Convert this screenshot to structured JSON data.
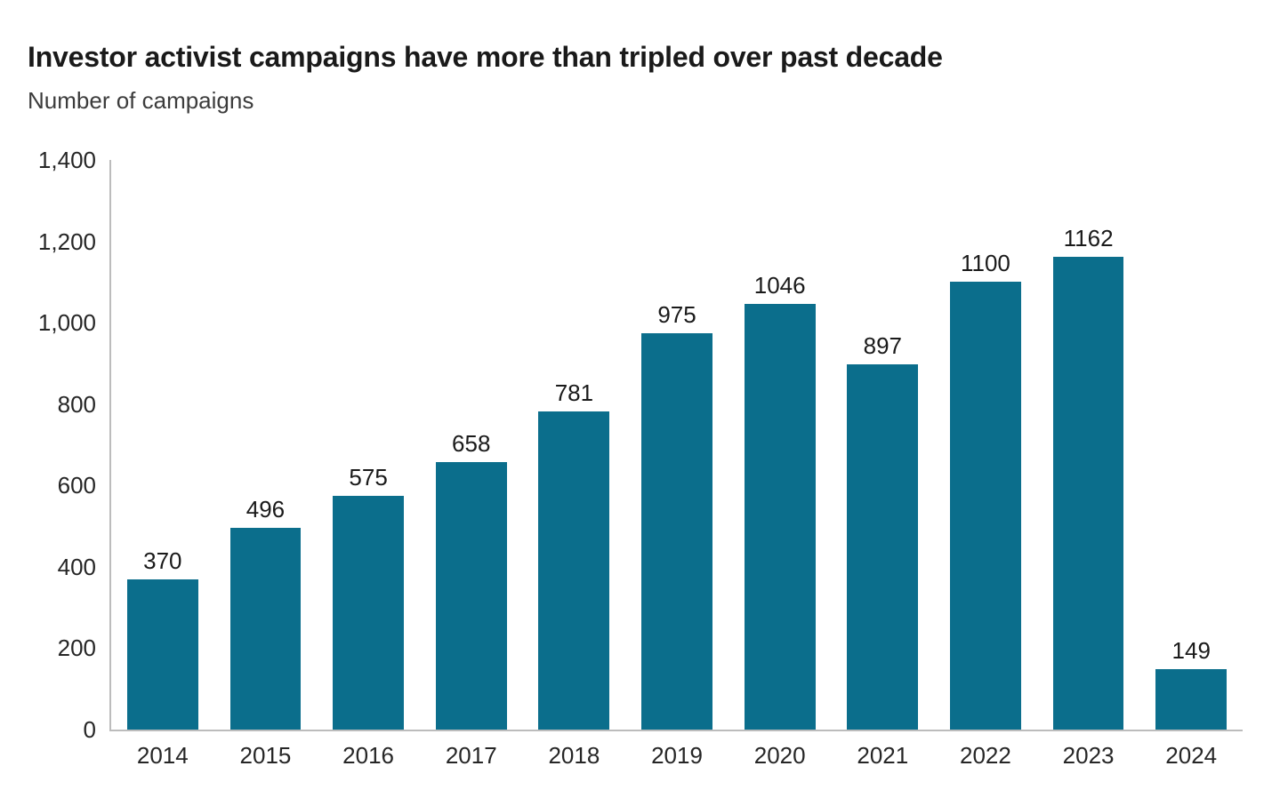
{
  "chart": {
    "title": "Investor activist campaigns have more than tripled over past decade",
    "subtitle": "Number of campaigns"
  },
  "chart_data": {
    "type": "bar",
    "title": "Investor activist campaigns have more than tripled over past decade",
    "subtitle": "Number of campaigns",
    "xlabel": "",
    "ylabel": "Number of campaigns",
    "categories": [
      "2014",
      "2015",
      "2016",
      "2017",
      "2018",
      "2019",
      "2020",
      "2021",
      "2022",
      "2023",
      "2024"
    ],
    "values": [
      370,
      496,
      575,
      658,
      781,
      975,
      1046,
      897,
      1100,
      1162,
      149
    ],
    "bar_labels": [
      "370",
      "496",
      "575",
      "658",
      "781",
      "975",
      "1046",
      "897",
      "1100",
      "1162",
      "149"
    ],
    "ylim": [
      0,
      1400
    ],
    "yticks": [
      0,
      200,
      400,
      600,
      800,
      1000,
      1200,
      1400
    ],
    "ytick_labels": [
      "0",
      "200",
      "400",
      "600",
      "800",
      "1,000",
      "1,200",
      "1,400"
    ],
    "grid": false,
    "legend": null,
    "colors": {
      "bar": "#0b6e8c",
      "axis": "#bcbcbc",
      "title": "#1a1a1a",
      "subtitle": "#3c3c3c",
      "tick": "#262626",
      "value_label": "#1a1a1a",
      "background": "#ffffff"
    }
  }
}
